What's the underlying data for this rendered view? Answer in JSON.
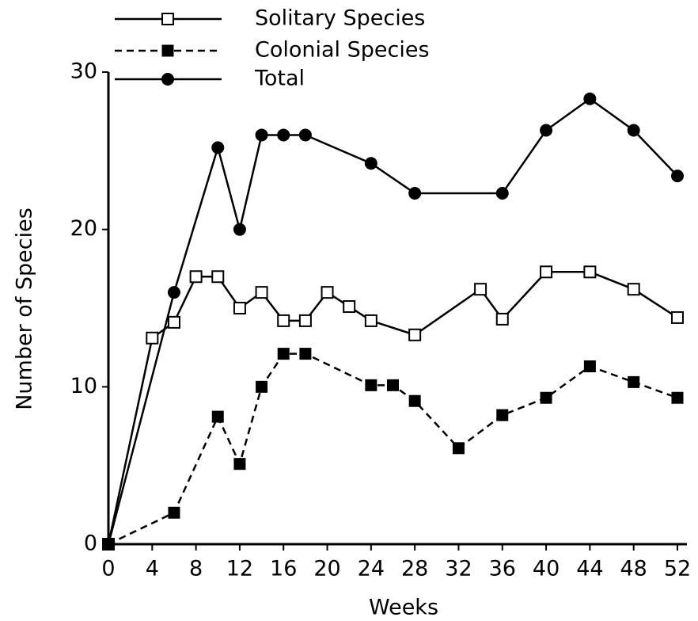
{
  "chart_data": {
    "type": "line",
    "xlabel": "Weeks",
    "ylabel": "Number of Species",
    "xlim": [
      0,
      52
    ],
    "xticks": [
      0,
      4,
      8,
      12,
      16,
      20,
      24,
      28,
      32,
      36,
      40,
      44,
      48,
      52
    ],
    "ylim": [
      0,
      30
    ],
    "yticks": [
      0,
      10,
      20,
      30
    ],
    "grid": false,
    "legend": "upper left",
    "series": [
      {
        "name": "Solitary Species",
        "color": "#000000",
        "linestyle": "solid",
        "marker": "open-square",
        "x": [
          0,
          4,
          6,
          8,
          10,
          12,
          14,
          16,
          18,
          20,
          22,
          24,
          28,
          34,
          36,
          40,
          44,
          48,
          52
        ],
        "values": [
          0,
          13.1,
          14.1,
          17,
          17,
          15,
          16,
          14.2,
          14.2,
          16,
          15.1,
          14.2,
          13.3,
          16.2,
          14.3,
          17.3,
          17.3,
          16.2,
          14.4
        ]
      },
      {
        "name": "Colonial Species",
        "color": "#000000",
        "linestyle": "dashed",
        "marker": "filled-square",
        "x": [
          0,
          6,
          10,
          12,
          14,
          16,
          18,
          24,
          26,
          28,
          32,
          36,
          40,
          44,
          48,
          52
        ],
        "values": [
          0,
          2,
          8.1,
          5.1,
          10,
          12.1,
          12.1,
          10.1,
          10.1,
          9.1,
          6.1,
          8.2,
          9.3,
          11.3,
          10.3,
          9.3
        ]
      },
      {
        "name": "Total",
        "color": "#000000",
        "linestyle": "solid",
        "marker": "filled-circle",
        "x": [
          0,
          6,
          10,
          12,
          14,
          16,
          18,
          24,
          28,
          36,
          40,
          44,
          48,
          52
        ],
        "values": [
          0,
          16,
          25.2,
          20,
          26,
          26,
          26,
          24.2,
          22.3,
          22.3,
          26.3,
          28.3,
          26.3,
          23.4
        ]
      }
    ]
  }
}
